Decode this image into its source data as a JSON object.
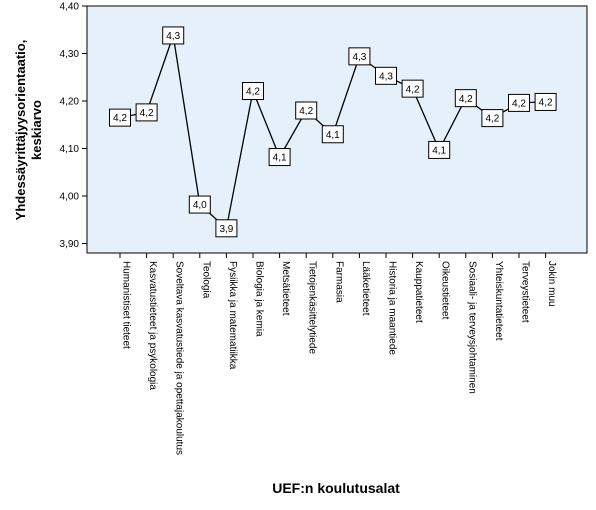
{
  "chart_data": {
    "type": "line",
    "title": "",
    "xlabel": "UEF:n koulutusalat",
    "ylabel_line1": "Yhdessäyrittäjyysorientaatio,",
    "ylabel_line2": "keskiarvo",
    "ylim": [
      3.88,
      4.4
    ],
    "yticks": [
      3.9,
      4.0,
      4.1,
      4.2,
      4.3,
      4.4
    ],
    "ytick_labels": [
      "3,90",
      "4,00",
      "4,10",
      "4,20",
      "4,30",
      "4,40"
    ],
    "grid": false,
    "plot_background": "#e6f0fa",
    "line_color": "#000000",
    "categories": [
      "Humanistiset tieteet",
      "Kasvatustieteet ja psykologia",
      "Soveltava kasvatustiede ja opettajakoulutus",
      "Teologia",
      "Fysiikka ja matematiikka",
      "Biologia ja kemia",
      "Metsätieteet",
      "Tietojenkäsittelytiede",
      "Farmasia",
      "Lääketieteet",
      "Historia ja maantiede",
      "Kauppatieteet",
      "Oikeustieteet",
      "Sosiaali- ja terveysjohtaminen",
      "Yhteiskuntatieteet",
      "Terveystieteet",
      "Jokin muu"
    ],
    "values": [
      4.165,
      4.176,
      4.338,
      3.982,
      3.932,
      4.221,
      4.082,
      4.18,
      4.13,
      4.294,
      4.253,
      4.226,
      4.097,
      4.206,
      4.164,
      4.196,
      4.198
    ],
    "data_labels": [
      "4,2",
      "4,2",
      "4,3",
      "4,0",
      "3,9",
      "4,2",
      "4,1",
      "4,2",
      "4,1",
      "4,3",
      "4,3",
      "4,2",
      "4,1",
      "4,2",
      "4,2",
      "4,2",
      "4,2"
    ]
  }
}
